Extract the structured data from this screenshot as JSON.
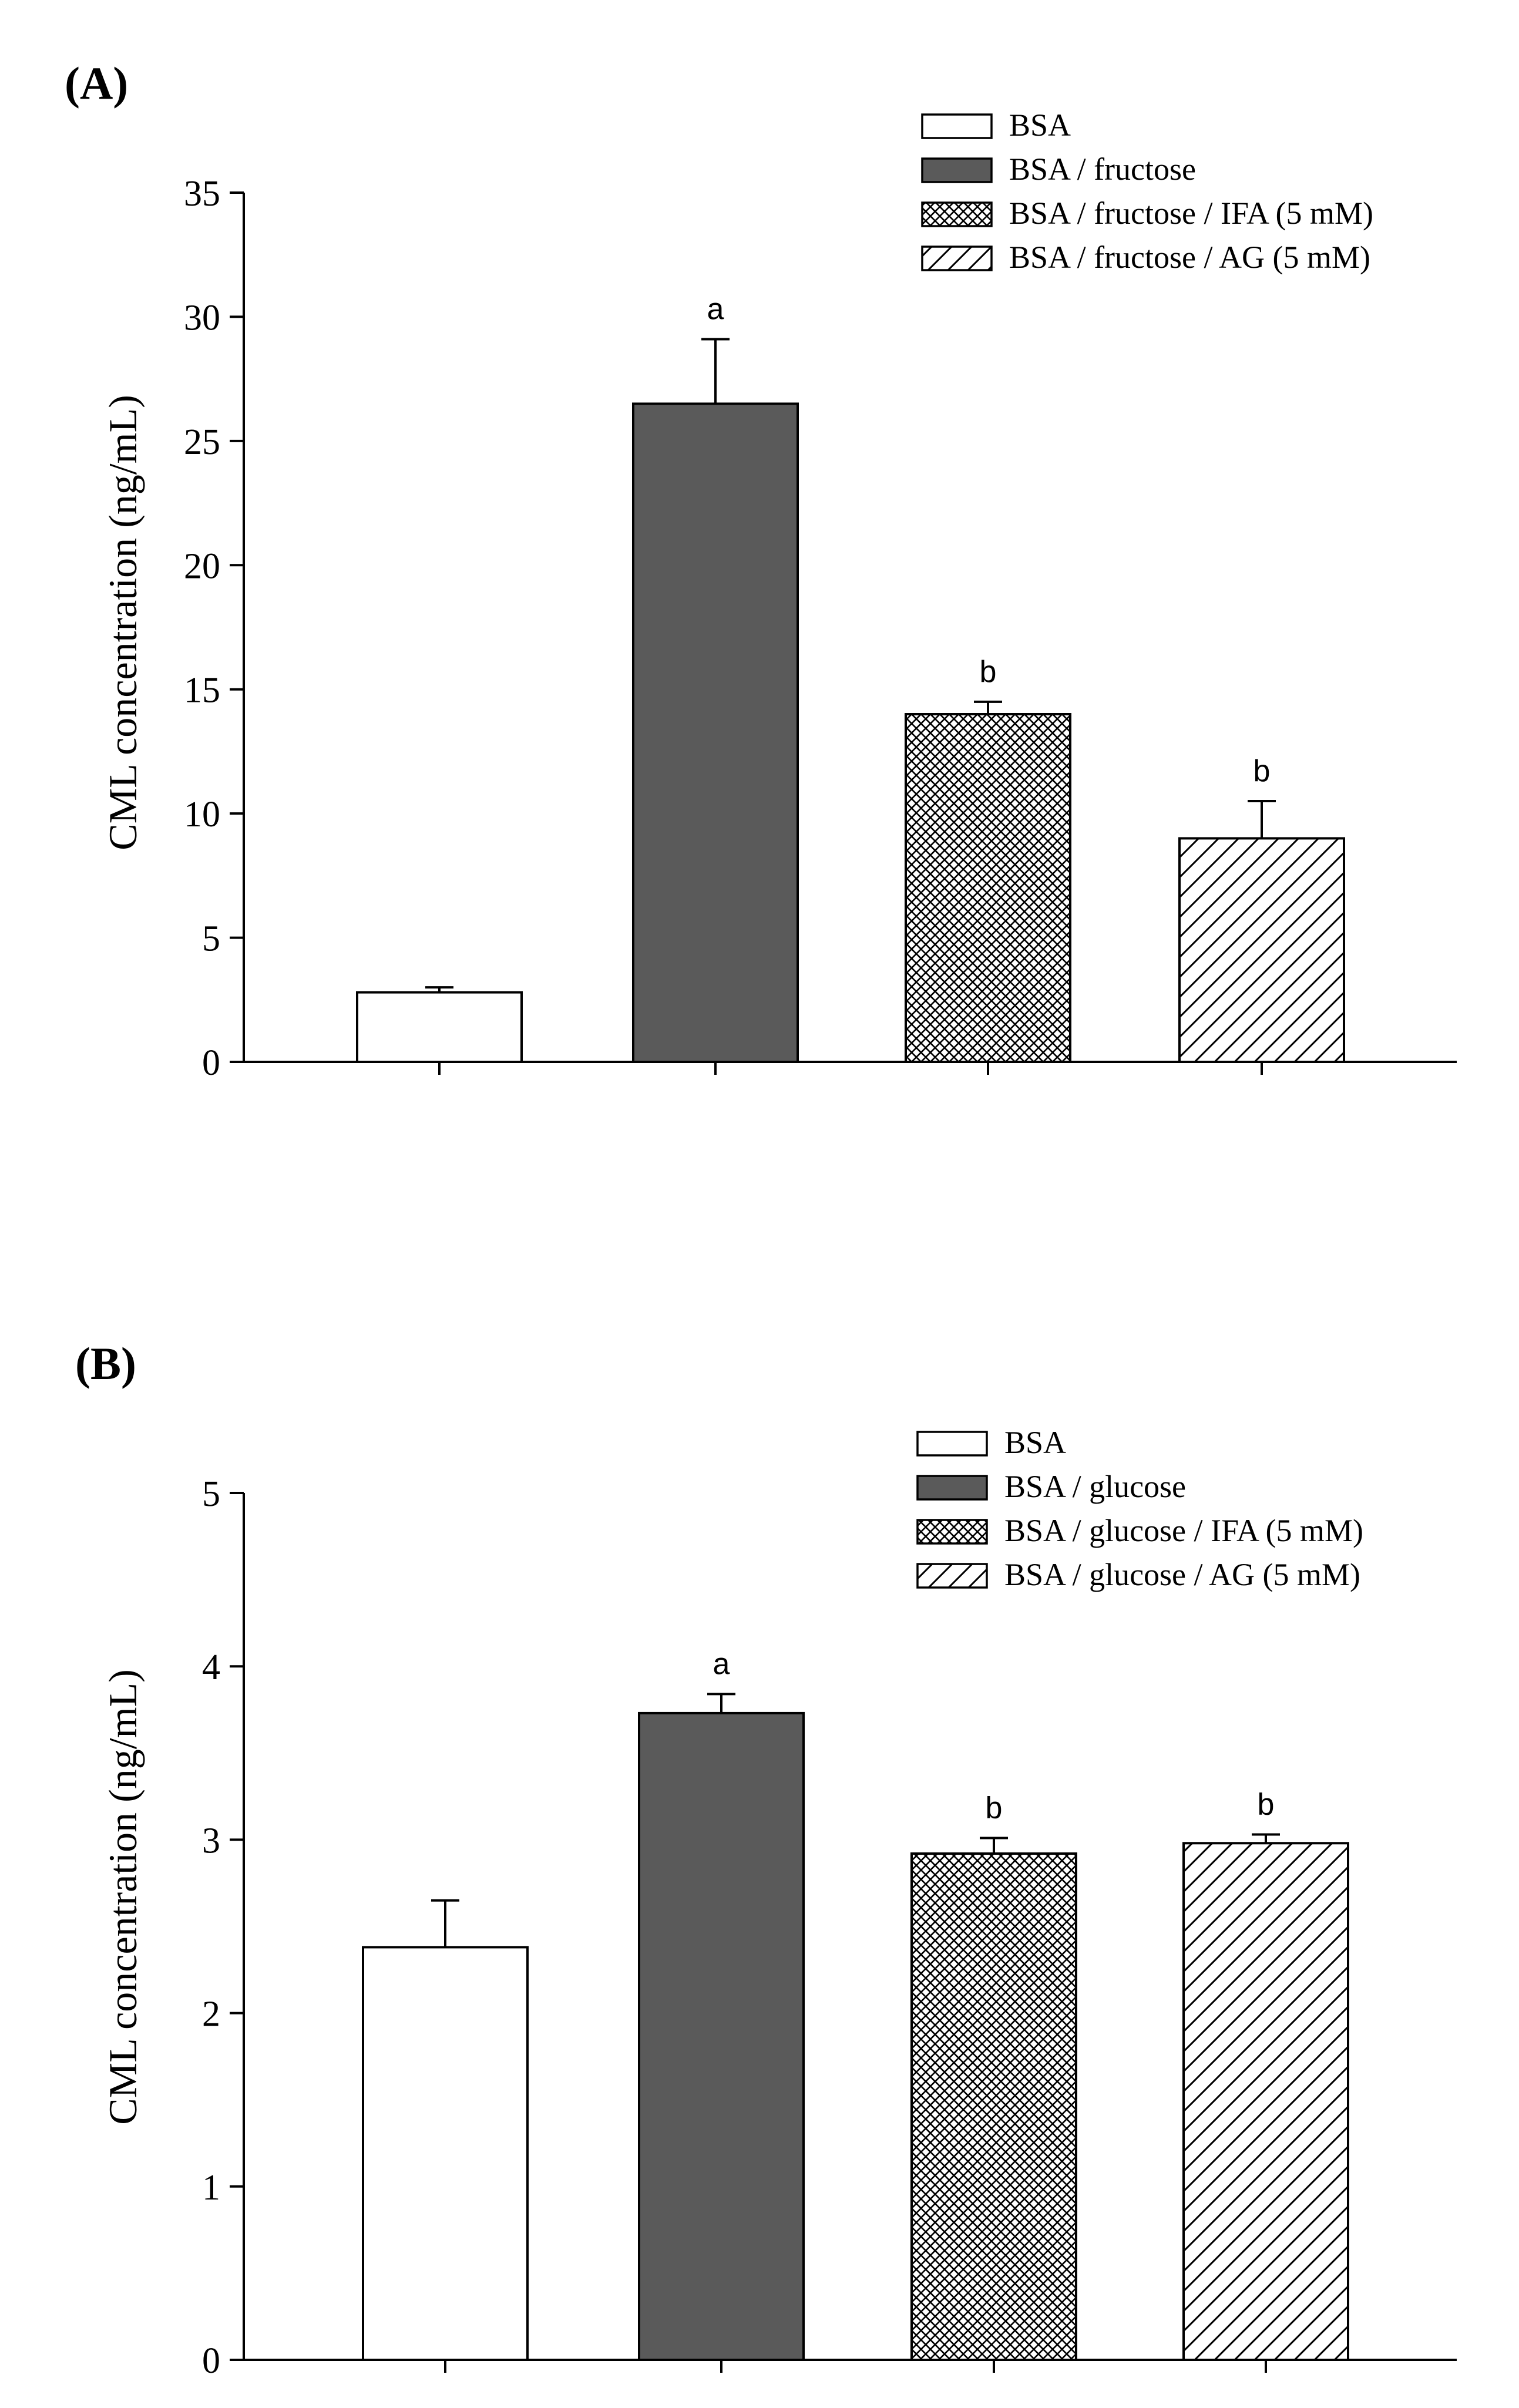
{
  "chart_data": [
    {
      "type": "bar",
      "panel_label": "(A)",
      "title": "",
      "xlabel": "",
      "ylabel": "CML concentration (ng/mL)",
      "ylim": [
        0,
        35
      ],
      "yticks": [
        0,
        5,
        10,
        15,
        20,
        25,
        30,
        35
      ],
      "grid": false,
      "legend_position": "top-right",
      "series": [
        {
          "name": "BSA",
          "value": 2.8,
          "error": 0.2,
          "letter": "",
          "fill": "white"
        },
        {
          "name": "BSA / fructose",
          "value": 26.5,
          "error": 2.6,
          "letter": "a",
          "fill": "dark"
        },
        {
          "name": "BSA / fructose / IFA (5 mM)",
          "value": 14.0,
          "error": 0.5,
          "letter": "b",
          "fill": "crosshatch"
        },
        {
          "name": "BSA / fructose / AG (5 mM)",
          "value": 9.0,
          "error": 1.5,
          "letter": "b",
          "fill": "diagonal"
        }
      ]
    },
    {
      "type": "bar",
      "panel_label": "(B)",
      "title": "",
      "xlabel": "",
      "ylabel": "CML concentration (ng/mL)",
      "ylim": [
        0,
        5
      ],
      "yticks": [
        0,
        1,
        2,
        3,
        4,
        5
      ],
      "grid": false,
      "legend_position": "top-right",
      "series": [
        {
          "name": "BSA",
          "value": 2.38,
          "error": 0.27,
          "letter": "",
          "fill": "white"
        },
        {
          "name": "BSA / glucose",
          "value": 3.73,
          "error": 0.11,
          "letter": "a",
          "fill": "dark"
        },
        {
          "name": "BSA / glucose / IFA (5 mM)",
          "value": 2.92,
          "error": 0.09,
          "letter": "b",
          "fill": "crosshatch"
        },
        {
          "name": "BSA / glucose / AG (5 mM)",
          "value": 2.98,
          "error": 0.05,
          "letter": "b",
          "fill": "diagonal"
        }
      ]
    }
  ],
  "colors": {
    "dark_bar": "#5a5a5a",
    "outline": "#000000",
    "background": "#ffffff"
  }
}
